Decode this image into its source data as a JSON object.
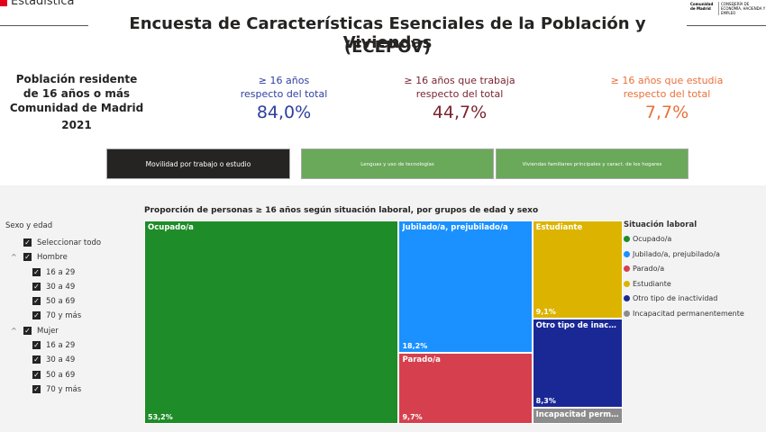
{
  "header": {
    "logo_text": "Estadística",
    "org_name": "Comunidad de Madrid",
    "org_dept": "CONSEJERÍA DE ECONOMÍA, HACIENDA Y EMPLEO",
    "title_line1": "Encuesta de Características Esenciales de la Población y Viviendas",
    "title_line2": "(ECEPOV)"
  },
  "summary": {
    "lines": [
      "Población residente",
      "de 16 años o más",
      "Comunidad de Madrid",
      "2021"
    ]
  },
  "kpis": [
    {
      "label1": "≥ 16 años",
      "label2": "respecto del total",
      "value": "84,0%",
      "color": "#2e3fa0"
    },
    {
      "label1": "≥ 16 años que trabaja",
      "label2": "respecto del total",
      "value": "44,7%",
      "color": "#7a2430"
    },
    {
      "label1": "≥ 16 años que estudia",
      "label2": "respecto del total",
      "value": "7,7%",
      "color": "#e8703a"
    }
  ],
  "tabs": [
    {
      "label": "Movilidad por trabajo o estudio",
      "active": true
    },
    {
      "label": "Lenguas y uso de tecnologías",
      "active": false
    },
    {
      "label": "Viviendas familiares principales y caract. de los hogares",
      "active": false
    }
  ],
  "slicer": {
    "title": "Sexo y edad",
    "select_all": "Seleccionar todo",
    "groups": [
      {
        "name": "Hombre",
        "items": [
          "16 a 29",
          "30 a 49",
          "50 a 69",
          "70 y más"
        ]
      },
      {
        "name": "Mujer",
        "items": [
          "16 a 29",
          "30 a 49",
          "50 a 69",
          "70 y más"
        ]
      }
    ]
  },
  "chart_data": {
    "type": "treemap",
    "title": "Proporción de personas ≥ 16 años según situación laboral, por grupos de edad y sexo",
    "legend_title": "Situación laboral",
    "categories": [
      "Ocupado/a",
      "Jubilado/a, prejubilado/a",
      "Parado/a",
      "Estudiante",
      "Otro tipo de inactividad",
      "Incapacitad permanentemente"
    ],
    "values": [
      53.2,
      18.2,
      9.7,
      9.1,
      8.3,
      1.5
    ],
    "value_labels": [
      "53,2%",
      "18,2%",
      "9,7%",
      "9,1%",
      "8,3%",
      null
    ],
    "colors": [
      "#1e8c28",
      "#1a91ff",
      "#d6404e",
      "#dcb400",
      "#1a2896",
      "#8c8c8c"
    ]
  }
}
